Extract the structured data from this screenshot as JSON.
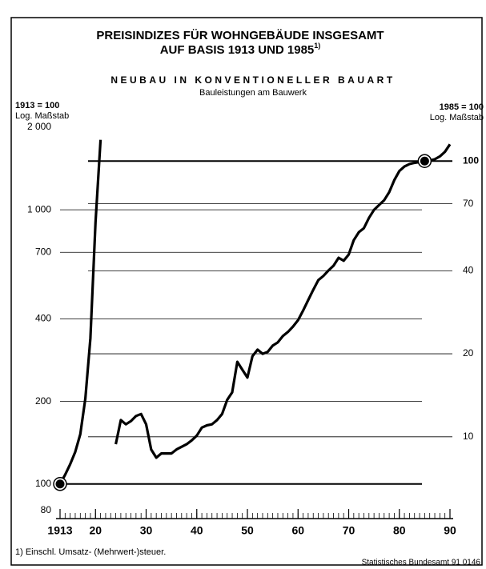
{
  "chart_data": {
    "type": "line",
    "title": [
      "PREISINDIZES FÜR WOHNGEBÄUDE INSGESAMT",
      "AUF BASIS 1913 UND 1985"
    ],
    "title_note": "1)",
    "subtitle": "NEUBAU IN KONVENTIONELLER BAUART",
    "subtitle2": "Bauleistungen am Bauwerk",
    "ylabel": [
      "1913 = 100",
      "Log. Maßstab"
    ],
    "y2label": [
      "1985 = 100",
      "Log. Maßstab"
    ],
    "footnote": "1) Einschl. Umsatz- (Mehrwert-)steuer.",
    "source": "Statistisches Bundesamt 91 0146",
    "log_scale": true,
    "grid": true,
    "xlim": [
      1913,
      1990
    ],
    "xticks": [
      1913,
      {
        "value": 1920,
        "label": "20"
      },
      {
        "value": 1930,
        "label": "30"
      },
      {
        "value": 1940,
        "label": "40"
      },
      {
        "value": 1950,
        "label": "50"
      },
      {
        "value": 1960,
        "label": "60"
      },
      {
        "value": 1970,
        "label": "70"
      },
      {
        "value": 1980,
        "label": "80"
      },
      {
        "value": 1990,
        "label": "90"
      }
    ],
    "ylim": [
      80,
      2000
    ],
    "yticks": [
      80,
      100,
      200,
      400,
      700,
      {
        "value": 1000,
        "label": "1 000"
      },
      {
        "value": 2000,
        "label": "2 000"
      }
    ],
    "y2lim": [
      5.4,
      132.6
    ],
    "y2ticks": [
      10,
      20,
      40,
      70,
      100
    ],
    "series": [
      {
        "color": "#000000",
        "x": [
          1913,
          1914,
          1915,
          1916,
          1917,
          1918,
          1919,
          1920,
          1921
        ],
        "values": [
          100,
          108,
          118,
          131,
          152,
          205,
          340,
          900,
          1800
        ]
      },
      {
        "color": "#000000",
        "axis": "y2",
        "x": [
          1924,
          1925,
          1926,
          1927,
          1928,
          1929,
          1930,
          1931,
          1932,
          1933,
          1934,
          1935,
          1936,
          1937,
          1938,
          1939,
          1940,
          1941,
          1942,
          1943,
          1944,
          1945,
          1946,
          1947,
          1948,
          1949,
          1950,
          1951,
          1952,
          1953,
          1954,
          1955,
          1956,
          1957,
          1958,
          1959,
          1960,
          1961,
          1962,
          1963,
          1964,
          1965,
          1966,
          1967,
          1968,
          1969,
          1970,
          1971,
          1972,
          1973,
          1974,
          1975,
          1976,
          1977,
          1978,
          1979,
          1980,
          1981,
          1982,
          1983,
          1984,
          1985,
          1986,
          1987,
          1988,
          1989,
          1990
        ],
        "values": [
          9.4,
          11.5,
          11.1,
          11.4,
          11.9,
          12.1,
          11.1,
          9.0,
          8.4,
          8.7,
          8.7,
          8.7,
          9.0,
          9.2,
          9.4,
          9.7,
          10.1,
          10.8,
          11.0,
          11.1,
          11.5,
          12.1,
          13.6,
          14.5,
          18.7,
          17.5,
          16.4,
          19.6,
          20.7,
          20.0,
          20.3,
          21.4,
          22.0,
          23.2,
          24.0,
          25.1,
          26.5,
          28.7,
          31.3,
          34.1,
          37.0,
          38.3,
          40.1,
          41.7,
          44.6,
          43.5,
          45.8,
          51.6,
          55.2,
          57.1,
          62.2,
          66.5,
          69.3,
          72.1,
          77.1,
          85.2,
          92.0,
          95.5,
          97.5,
          98.5,
          99.2,
          100,
          100.5,
          101.5,
          104,
          108,
          115
        ]
      }
    ]
  }
}
